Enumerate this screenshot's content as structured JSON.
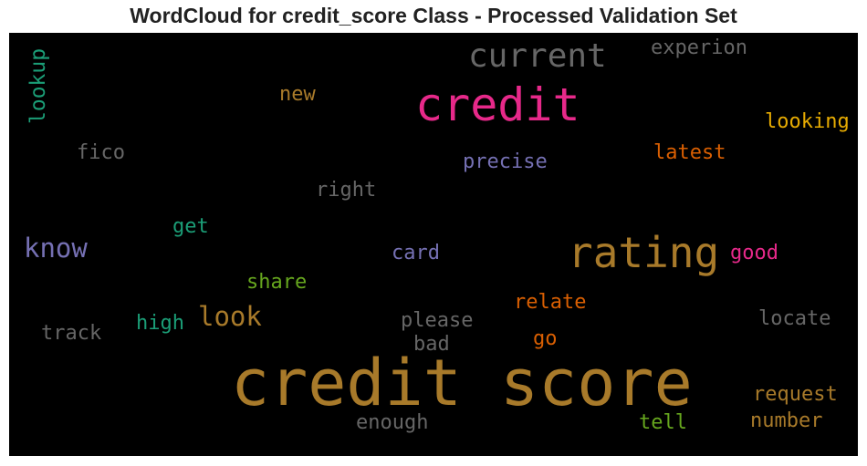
{
  "title": "WordCloud for credit_score Class - Processed Validation Set",
  "words": [
    {
      "text": "credit score",
      "color": "#a87a2a"
    },
    {
      "text": "credit",
      "color": "#e7298a"
    },
    {
      "text": "rating",
      "color": "#a87a2a"
    },
    {
      "text": "current",
      "color": "#666666"
    },
    {
      "text": "know",
      "color": "#7570b3"
    },
    {
      "text": "look",
      "color": "#a87a2a"
    },
    {
      "text": "experion",
      "color": "#666666"
    },
    {
      "text": "lookup",
      "color": "#1b9e77"
    },
    {
      "text": "new",
      "color": "#a87a2a"
    },
    {
      "text": "looking",
      "color": "#e6ab02"
    },
    {
      "text": "fico",
      "color": "#666666"
    },
    {
      "text": "precise",
      "color": "#7570b3"
    },
    {
      "text": "latest",
      "color": "#d95f02"
    },
    {
      "text": "right",
      "color": "#666666"
    },
    {
      "text": "get",
      "color": "#1b9e77"
    },
    {
      "text": "card",
      "color": "#7570b3"
    },
    {
      "text": "good",
      "color": "#e7298a"
    },
    {
      "text": "share",
      "color": "#66a61e"
    },
    {
      "text": "relate",
      "color": "#d95f02"
    },
    {
      "text": "high",
      "color": "#1b9e77"
    },
    {
      "text": "please",
      "color": "#666666"
    },
    {
      "text": "locate",
      "color": "#666666"
    },
    {
      "text": "track",
      "color": "#666666"
    },
    {
      "text": "bad",
      "color": "#666666"
    },
    {
      "text": "go",
      "color": "#d95f02"
    },
    {
      "text": "request",
      "color": "#a87a2a"
    },
    {
      "text": "enough",
      "color": "#666666"
    },
    {
      "text": "tell",
      "color": "#66a61e"
    },
    {
      "text": "number",
      "color": "#a87a2a"
    }
  ]
}
